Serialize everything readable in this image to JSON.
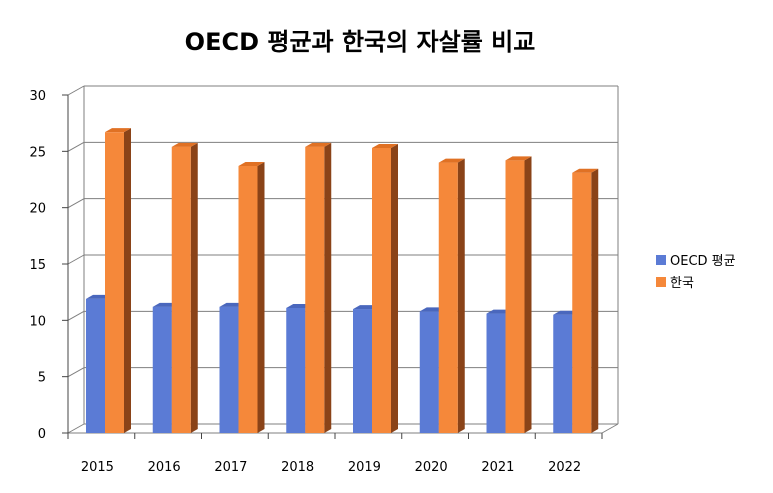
{
  "chart_data": {
    "type": "bar",
    "title": "OECD 평균과 한국의 자살률 비교",
    "xlabel": "",
    "ylabel": "",
    "categories": [
      "2015",
      "2016",
      "2017",
      "2018",
      "2019",
      "2020",
      "2021",
      "2022"
    ],
    "series": [
      {
        "name": "OECD 평균",
        "values": [
          11.9,
          11.2,
          11.2,
          11.1,
          11.0,
          10.8,
          10.6,
          10.5
        ]
      },
      {
        "name": "한국",
        "values": [
          26.7,
          25.4,
          23.7,
          25.4,
          25.3,
          24.0,
          24.2,
          23.1
        ]
      }
    ],
    "ylim": [
      0,
      30
    ],
    "yticks": [
      "0",
      "5",
      "10",
      "15",
      "20",
      "25",
      "30"
    ],
    "grid": true,
    "legend_position": "right",
    "style": "3d-column"
  },
  "colors": {
    "oecd": "#5b7bd5",
    "oecd_top": "#4a67bd",
    "oecd_side": "#3f569e",
    "korea": "#f5883a",
    "korea_top": "#e07124",
    "korea_side": "#8a4318",
    "grid": "#7f7f7f"
  }
}
